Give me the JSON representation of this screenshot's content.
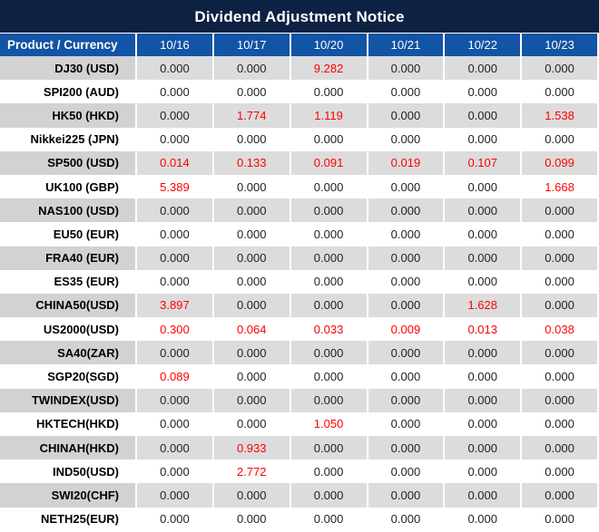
{
  "title": "Dividend Adjustment Notice",
  "colors": {
    "title_bg": "#0d2142",
    "header_bg": "#1254a5",
    "row_gray_label": "#d2d2d2",
    "row_gray_value": "#dcdcdc",
    "row_white": "#ffffff",
    "value_text": "#1f1f1f",
    "highlight_red": "#ff0000"
  },
  "chart_data": {
    "type": "table",
    "title": "Dividend Adjustment Notice",
    "columns": [
      "Product / Currency",
      "10/16",
      "10/17",
      "10/20",
      "10/21",
      "10/22",
      "10/23"
    ],
    "rows": [
      {
        "product": "DJ30 (USD)",
        "values": [
          "0.000",
          "0.000",
          "9.282",
          "0.000",
          "0.000",
          "0.000"
        ],
        "red": [
          0,
          0,
          1,
          0,
          0,
          0
        ]
      },
      {
        "product": "SPI200 (AUD)",
        "values": [
          "0.000",
          "0.000",
          "0.000",
          "0.000",
          "0.000",
          "0.000"
        ],
        "red": [
          0,
          0,
          0,
          0,
          0,
          0
        ]
      },
      {
        "product": "HK50 (HKD)",
        "values": [
          "0.000",
          "1.774",
          "1.119",
          "0.000",
          "0.000",
          "1.538"
        ],
        "red": [
          0,
          1,
          1,
          0,
          0,
          1
        ]
      },
      {
        "product": "Nikkei225 (JPN)",
        "values": [
          "0.000",
          "0.000",
          "0.000",
          "0.000",
          "0.000",
          "0.000"
        ],
        "red": [
          0,
          0,
          0,
          0,
          0,
          0
        ]
      },
      {
        "product": "SP500 (USD)",
        "values": [
          "0.014",
          "0.133",
          "0.091",
          "0.019",
          "0.107",
          "0.099"
        ],
        "red": [
          1,
          1,
          1,
          1,
          1,
          1
        ]
      },
      {
        "product": "UK100 (GBP)",
        "values": [
          "5.389",
          "0.000",
          "0.000",
          "0.000",
          "0.000",
          "1.668"
        ],
        "red": [
          1,
          0,
          0,
          0,
          0,
          1
        ]
      },
      {
        "product": "NAS100 (USD)",
        "values": [
          "0.000",
          "0.000",
          "0.000",
          "0.000",
          "0.000",
          "0.000"
        ],
        "red": [
          0,
          0,
          0,
          0,
          0,
          0
        ]
      },
      {
        "product": "EU50 (EUR)",
        "values": [
          "0.000",
          "0.000",
          "0.000",
          "0.000",
          "0.000",
          "0.000"
        ],
        "red": [
          0,
          0,
          0,
          0,
          0,
          0
        ]
      },
      {
        "product": "FRA40 (EUR)",
        "values": [
          "0.000",
          "0.000",
          "0.000",
          "0.000",
          "0.000",
          "0.000"
        ],
        "red": [
          0,
          0,
          0,
          0,
          0,
          0
        ]
      },
      {
        "product": "ES35 (EUR)",
        "values": [
          "0.000",
          "0.000",
          "0.000",
          "0.000",
          "0.000",
          "0.000"
        ],
        "red": [
          0,
          0,
          0,
          0,
          0,
          0
        ]
      },
      {
        "product": "CHINA50(USD)",
        "values": [
          "3.897",
          "0.000",
          "0.000",
          "0.000",
          "1.628",
          "0.000"
        ],
        "red": [
          1,
          0,
          0,
          0,
          1,
          0
        ]
      },
      {
        "product": "US2000(USD)",
        "values": [
          "0.300",
          "0.064",
          "0.033",
          "0.009",
          "0.013",
          "0.038"
        ],
        "red": [
          1,
          1,
          1,
          1,
          1,
          1
        ]
      },
      {
        "product": "SA40(ZAR)",
        "values": [
          "0.000",
          "0.000",
          "0.000",
          "0.000",
          "0.000",
          "0.000"
        ],
        "red": [
          0,
          0,
          0,
          0,
          0,
          0
        ]
      },
      {
        "product": "SGP20(SGD)",
        "values": [
          "0.089",
          "0.000",
          "0.000",
          "0.000",
          "0.000",
          "0.000"
        ],
        "red": [
          1,
          0,
          0,
          0,
          0,
          0
        ]
      },
      {
        "product": "TWINDEX(USD)",
        "values": [
          "0.000",
          "0.000",
          "0.000",
          "0.000",
          "0.000",
          "0.000"
        ],
        "red": [
          0,
          0,
          0,
          0,
          0,
          0
        ]
      },
      {
        "product": "HKTECH(HKD)",
        "values": [
          "0.000",
          "0.000",
          "1.050",
          "0.000",
          "0.000",
          "0.000"
        ],
        "red": [
          0,
          0,
          1,
          0,
          0,
          0
        ]
      },
      {
        "product": "CHINAH(HKD)",
        "values": [
          "0.000",
          "0.933",
          "0.000",
          "0.000",
          "0.000",
          "0.000"
        ],
        "red": [
          0,
          1,
          0,
          0,
          0,
          0
        ]
      },
      {
        "product": "IND50(USD)",
        "values": [
          "0.000",
          "2.772",
          "0.000",
          "0.000",
          "0.000",
          "0.000"
        ],
        "red": [
          0,
          1,
          0,
          0,
          0,
          0
        ]
      },
      {
        "product": "SWI20(CHF)",
        "values": [
          "0.000",
          "0.000",
          "0.000",
          "0.000",
          "0.000",
          "0.000"
        ],
        "red": [
          0,
          0,
          0,
          0,
          0,
          0
        ]
      },
      {
        "product": "NETH25(EUR)",
        "values": [
          "0.000",
          "0.000",
          "0.000",
          "0.000",
          "0.000",
          "0.000"
        ],
        "red": [
          0,
          0,
          0,
          0,
          0,
          0
        ]
      }
    ]
  }
}
